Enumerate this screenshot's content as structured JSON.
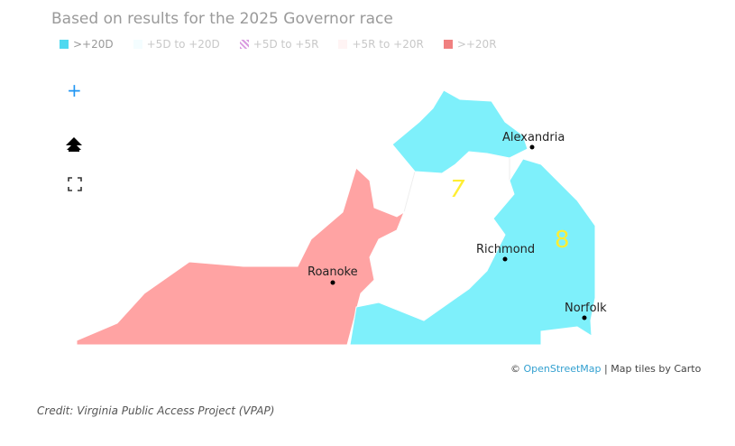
{
  "header": {
    "subtitle": "Based on results for the 2025 Governor race"
  },
  "legend": {
    "items": [
      ">+20D",
      "+5D to +20D",
      "+5D to +5R",
      "+5R to +20R",
      ">+20R"
    ]
  },
  "controls": {
    "zoom_in": "+"
  },
  "map": {
    "districts": [
      "7",
      "8"
    ],
    "cities": [
      "Alexandria",
      "Richmond",
      "Roanoke",
      "Norfolk"
    ]
  },
  "attribution": {
    "copyright": "©",
    "osm": "OpenStreetMap",
    "rest": "| Map tiles by Carto"
  },
  "credit": "Credit: Virginia Public Access Project (VPAP)"
}
